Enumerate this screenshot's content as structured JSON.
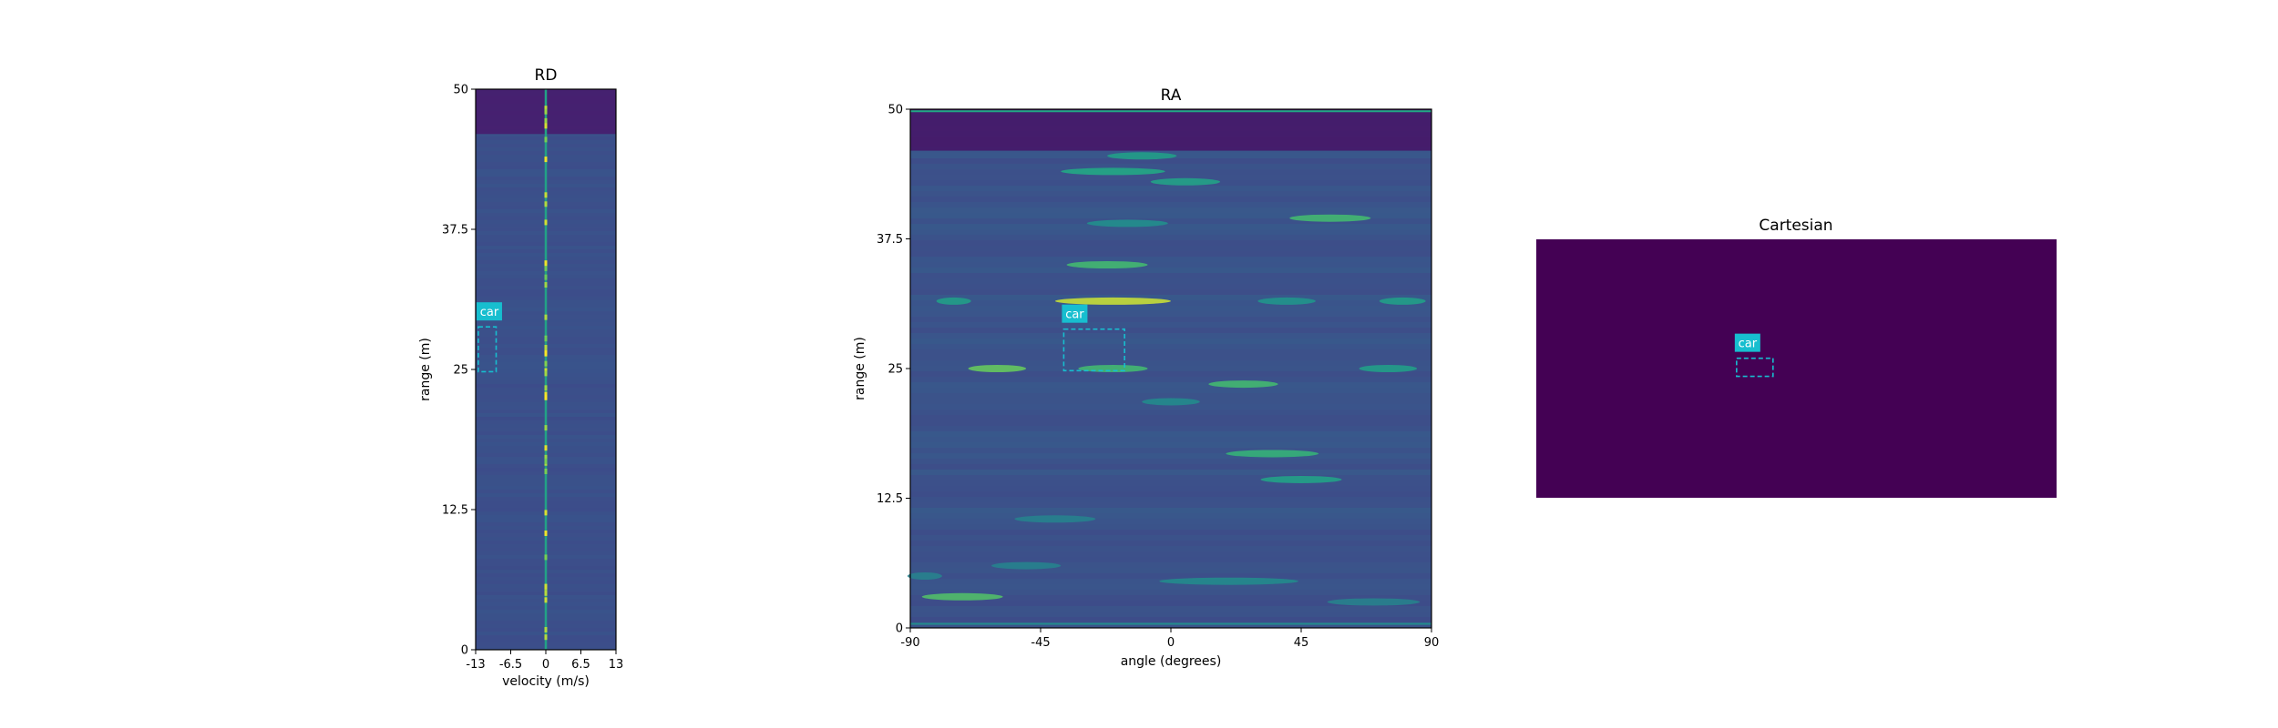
{
  "chart_data": [
    {
      "type": "heatmap",
      "title": "RD",
      "xlabel": "velocity (m/s)",
      "ylabel": "range (m)",
      "xlim": [
        -13,
        13
      ],
      "ylim": [
        0,
        50
      ],
      "xticks": [
        "-13",
        "-6.5",
        "0",
        "6.5",
        "13"
      ],
      "yticks": [
        "0",
        "12.5",
        "25",
        "37.5",
        "50"
      ],
      "colormap": "viridis",
      "annotations": [
        {
          "label": "car",
          "x_range": [
            -12.5,
            -9.2
          ],
          "y_range": [
            24.8,
            28.8
          ],
          "color": "#17becf"
        }
      ]
    },
    {
      "type": "heatmap",
      "title": "RA",
      "xlabel": "angle (degrees)",
      "ylabel": "range (m)",
      "xlim": [
        -90,
        90
      ],
      "ylim": [
        0,
        50
      ],
      "xticks": [
        "-90",
        "-45",
        "0",
        "45",
        "90"
      ],
      "yticks": [
        "0",
        "12.5",
        "25",
        "37.5",
        "50"
      ],
      "colormap": "viridis",
      "annotations": [
        {
          "label": "car",
          "x_range": [
            -37,
            -16
          ],
          "y_range": [
            24.8,
            28.8
          ],
          "color": "#17becf"
        }
      ]
    },
    {
      "type": "heatmap",
      "title": "Cartesian",
      "xlabel": "",
      "ylabel": "",
      "colormap": "viridis",
      "background_color": "#440154",
      "annotations": [
        {
          "label": "car",
          "x_range_fraction": [
            0.385,
            0.455
          ],
          "y_range_fraction": [
            0.46,
            0.53
          ],
          "color": "#17becf"
        }
      ]
    }
  ]
}
